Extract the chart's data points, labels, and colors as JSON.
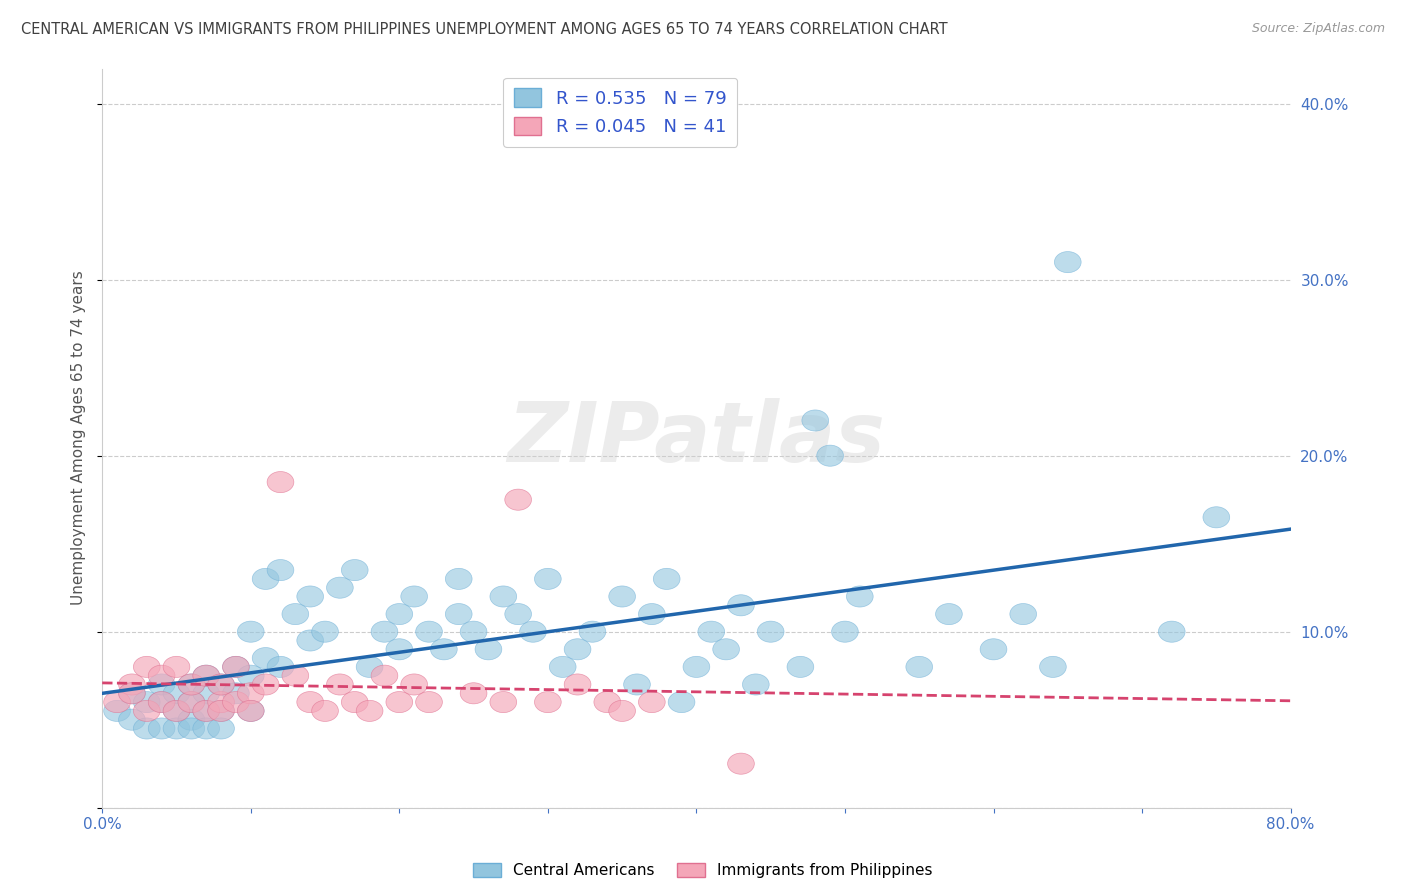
{
  "title": "CENTRAL AMERICAN VS IMMIGRANTS FROM PHILIPPINES UNEMPLOYMENT AMONG AGES 65 TO 74 YEARS CORRELATION CHART",
  "source": "Source: ZipAtlas.com",
  "ylabel": "Unemployment Among Ages 65 to 74 years",
  "xlim": [
    0,
    0.8
  ],
  "ylim": [
    0.0,
    0.42
  ],
  "xticks": [
    0.0,
    0.1,
    0.2,
    0.3,
    0.4,
    0.5,
    0.6,
    0.7,
    0.8
  ],
  "yticks": [
    0.0,
    0.1,
    0.2,
    0.3,
    0.4
  ],
  "ytick_labels": [
    "",
    "10.0%",
    "20.0%",
    "30.0%",
    "40.0%"
  ],
  "xtick_labels": [
    "0.0%",
    "",
    "",
    "",
    "",
    "",
    "",
    "",
    "80.0%"
  ],
  "group1_label": "Central Americans",
  "group1_R": "0.535",
  "group1_N": "79",
  "group1_color": "#92c5de",
  "group1_edge_color": "#6baed6",
  "group1_line_color": "#2166ac",
  "group2_label": "Immigrants from Philippines",
  "group2_R": "0.045",
  "group2_N": "41",
  "group2_color": "#f4a6b8",
  "group2_edge_color": "#e07090",
  "group2_line_color": "#d6436e",
  "legend_text_color": "#3355cc",
  "right_axis_color": "#4472c4",
  "background_color": "#ffffff",
  "grid_color": "#cccccc",
  "title_color": "#404040",
  "watermark": "ZIPatlas",
  "group1_x": [
    0.01,
    0.02,
    0.02,
    0.03,
    0.03,
    0.04,
    0.04,
    0.04,
    0.05,
    0.05,
    0.05,
    0.06,
    0.06,
    0.06,
    0.06,
    0.07,
    0.07,
    0.07,
    0.07,
    0.08,
    0.08,
    0.08,
    0.09,
    0.09,
    0.1,
    0.1,
    0.1,
    0.11,
    0.11,
    0.12,
    0.12,
    0.13,
    0.14,
    0.14,
    0.15,
    0.16,
    0.17,
    0.18,
    0.19,
    0.2,
    0.2,
    0.21,
    0.22,
    0.23,
    0.24,
    0.24,
    0.25,
    0.26,
    0.27,
    0.28,
    0.29,
    0.3,
    0.31,
    0.32,
    0.33,
    0.35,
    0.36,
    0.37,
    0.38,
    0.39,
    0.4,
    0.41,
    0.42,
    0.43,
    0.44,
    0.45,
    0.47,
    0.48,
    0.49,
    0.5,
    0.51,
    0.65,
    0.55,
    0.57,
    0.6,
    0.62,
    0.64,
    0.72,
    0.75
  ],
  "group1_y": [
    0.055,
    0.05,
    0.065,
    0.045,
    0.06,
    0.06,
    0.045,
    0.07,
    0.055,
    0.065,
    0.045,
    0.06,
    0.05,
    0.07,
    0.045,
    0.065,
    0.055,
    0.075,
    0.045,
    0.07,
    0.055,
    0.045,
    0.065,
    0.08,
    0.075,
    0.055,
    0.1,
    0.085,
    0.13,
    0.135,
    0.08,
    0.11,
    0.12,
    0.095,
    0.1,
    0.125,
    0.135,
    0.08,
    0.1,
    0.11,
    0.09,
    0.12,
    0.1,
    0.09,
    0.11,
    0.13,
    0.1,
    0.09,
    0.12,
    0.11,
    0.1,
    0.13,
    0.08,
    0.09,
    0.1,
    0.12,
    0.07,
    0.11,
    0.13,
    0.06,
    0.08,
    0.1,
    0.09,
    0.115,
    0.07,
    0.1,
    0.08,
    0.22,
    0.2,
    0.1,
    0.12,
    0.31,
    0.08,
    0.11,
    0.09,
    0.11,
    0.08,
    0.1,
    0.165
  ],
  "group2_x": [
    0.01,
    0.02,
    0.02,
    0.03,
    0.03,
    0.04,
    0.04,
    0.05,
    0.05,
    0.06,
    0.06,
    0.07,
    0.07,
    0.08,
    0.08,
    0.08,
    0.09,
    0.09,
    0.1,
    0.1,
    0.11,
    0.12,
    0.13,
    0.14,
    0.15,
    0.16,
    0.17,
    0.18,
    0.19,
    0.2,
    0.21,
    0.22,
    0.25,
    0.27,
    0.28,
    0.3,
    0.32,
    0.34,
    0.35,
    0.37,
    0.43
  ],
  "group2_y": [
    0.06,
    0.07,
    0.065,
    0.055,
    0.08,
    0.06,
    0.075,
    0.055,
    0.08,
    0.06,
    0.07,
    0.055,
    0.075,
    0.06,
    0.07,
    0.055,
    0.06,
    0.08,
    0.065,
    0.055,
    0.07,
    0.185,
    0.075,
    0.06,
    0.055,
    0.07,
    0.06,
    0.055,
    0.075,
    0.06,
    0.07,
    0.06,
    0.065,
    0.06,
    0.175,
    0.06,
    0.07,
    0.06,
    0.055,
    0.06,
    0.025
  ]
}
